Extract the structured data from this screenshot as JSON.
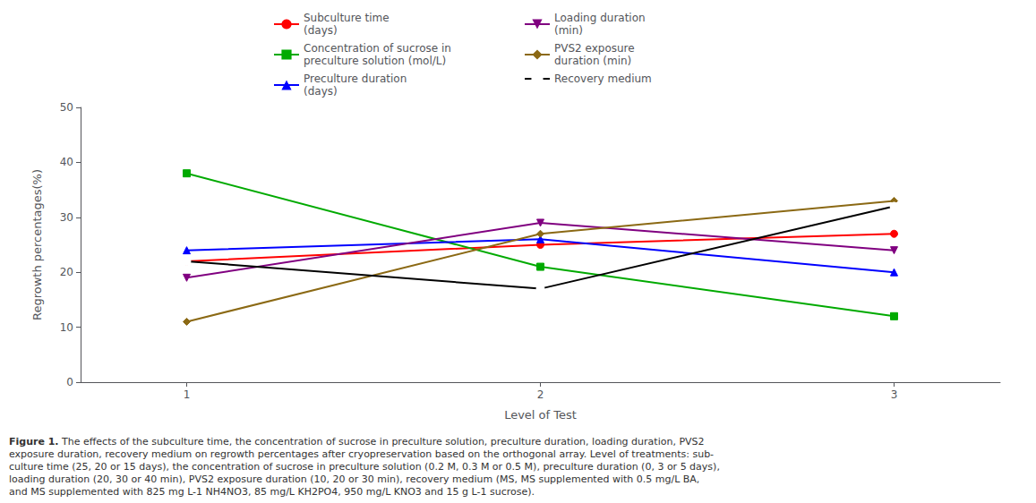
{
  "chart_data": {
    "type": "line",
    "x": [
      1,
      2,
      3
    ],
    "xlabel": "Level of Test",
    "ylabel": "Regrowth percentages(%)",
    "xlim": [
      0.7,
      3.3
    ],
    "xticks": [
      1,
      2,
      3
    ],
    "ylim": [
      0,
      50
    ],
    "yticks": [
      0,
      10,
      20,
      30,
      40,
      50
    ],
    "grid": false,
    "legend": "top",
    "series": [
      {
        "name": "Subculture time\n(days)",
        "color": "#FF0000",
        "marker": "circle",
        "values": [
          22,
          25,
          27
        ]
      },
      {
        "name": "Concentration of sucrose in\npreculture solution (mol/L)",
        "color": "#00AA00",
        "marker": "square",
        "values": [
          38,
          21,
          12
        ]
      },
      {
        "name": "Preculture duration\n(days)",
        "color": "#0000FF",
        "marker": "triangle",
        "values": [
          24,
          26,
          20
        ]
      },
      {
        "name": "Loading duration\n(min)",
        "color": "#800080",
        "marker": "triangle-down",
        "values": [
          19,
          29,
          24
        ]
      },
      {
        "name": "PVS2 exposure\nduration (min)",
        "color": "#8B6914",
        "marker": "diamond",
        "values": [
          11,
          27,
          33
        ]
      },
      {
        "name": "Recovery medium",
        "color": "#000000",
        "marker": "open-circle",
        "values": [
          22,
          17,
          32
        ]
      }
    ],
    "annotations": [
      "Figure 1.",
      "The effects of the subculture time, the concentration of sucrose in preculture solution, preculture duration, loading duration, PVS2\nexposure duration, recovery medium on regrowth percentages after cryopreservation based on the orthogonal array. Level of treatments: sub-\nculture time (25, 20 or 15 days), the concentration of sucrose in preculture solution (0.2 M, 0.3 M or 0.5 M), preculture duration (0, 3 or 5 days),\nloading duration (20, 30 or 40 min), PVS2 exposure duration (10, 20 or 30 min), recovery medium (MS, MS supplemented with 0.5 mg/L BA,\nand MS supplemented with 825 mg L-1 NH4NO3, 85 mg/L KH2PO4, 950 mg/L KNO3 and 15 g L-1 sucrose)."
    ]
  }
}
